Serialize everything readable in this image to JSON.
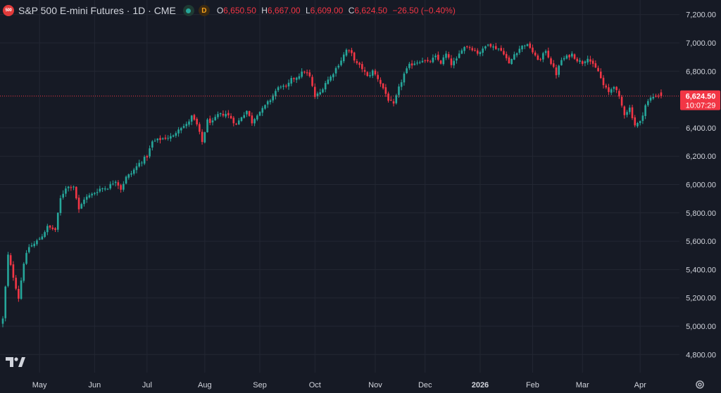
{
  "header": {
    "logo_text": "500",
    "symbol_title": "S&P 500 E-mini Futures · 1D · CME",
    "data_badge": "D",
    "open_key": "O",
    "open": "6,650.50",
    "high_key": "H",
    "high": "6,667.00",
    "low_key": "L",
    "low": "6,609.00",
    "close_key": "C",
    "close": "6,624.50",
    "change": "−26.50 (−0.40%)"
  },
  "price_label": {
    "price": "6,624.50",
    "countdown": "10:07:29"
  },
  "colors": {
    "up": "#26a69a",
    "down": "#f23645",
    "background": "#161a25",
    "grid": "#232733",
    "text": "#d1d4dc"
  },
  "icons": {
    "brand": "tradingview-logo-icon",
    "settings": "gear-icon"
  },
  "chart_data": {
    "type": "candlestick",
    "ylim": [
      4700,
      7300
    ],
    "grid": true,
    "last_price": 6624.5,
    "y_ticks": [
      {
        "value": 7200,
        "label": "7,200.00"
      },
      {
        "value": 7000,
        "label": "7,000.00"
      },
      {
        "value": 6800,
        "label": "6,800.00"
      },
      {
        "value": 6400,
        "label": "6,400.00"
      },
      {
        "value": 6200,
        "label": "6,200.00"
      },
      {
        "value": 6000,
        "label": "6,000.00"
      },
      {
        "value": 5800,
        "label": "5,800.00"
      },
      {
        "value": 5600,
        "label": "5,600.00"
      },
      {
        "value": 5400,
        "label": "5,400.00"
      },
      {
        "value": 5200,
        "label": "5,200.00"
      },
      {
        "value": 5000,
        "label": "5,000.00"
      },
      {
        "value": 4800,
        "label": "4,800.00"
      }
    ],
    "x_ticks": [
      {
        "label": "May",
        "day": 14,
        "bold": false
      },
      {
        "label": "Jun",
        "day": 35,
        "bold": false
      },
      {
        "label": "Jul",
        "day": 55,
        "bold": false
      },
      {
        "label": "Aug",
        "day": 77,
        "bold": false
      },
      {
        "label": "Sep",
        "day": 98,
        "bold": false
      },
      {
        "label": "Oct",
        "day": 119,
        "bold": false
      },
      {
        "label": "Nov",
        "day": 142,
        "bold": false
      },
      {
        "label": "Dec",
        "day": 161,
        "bold": false
      },
      {
        "label": "2026",
        "day": 182,
        "bold": true
      },
      {
        "label": "Feb",
        "day": 202,
        "bold": false
      },
      {
        "label": "Mar",
        "day": 221,
        "bold": false
      },
      {
        "label": "Apr",
        "day": 243,
        "bold": false
      }
    ],
    "close_path": [
      [
        0,
        5050
      ],
      [
        2,
        5500
      ],
      [
        4,
        5350
      ],
      [
        6,
        5200
      ],
      [
        8,
        5450
      ],
      [
        10,
        5560
      ],
      [
        12,
        5580
      ],
      [
        15,
        5640
      ],
      [
        17,
        5700
      ],
      [
        20,
        5680
      ],
      [
        22,
        5900
      ],
      [
        24,
        5980
      ],
      [
        27,
        5990
      ],
      [
        29,
        5820
      ],
      [
        31,
        5900
      ],
      [
        34,
        5930
      ],
      [
        37,
        5970
      ],
      [
        40,
        5980
      ],
      [
        43,
        6030
      ],
      [
        45,
        5970
      ],
      [
        47,
        6050
      ],
      [
        49,
        6080
      ],
      [
        52,
        6150
      ],
      [
        55,
        6200
      ],
      [
        57,
        6300
      ],
      [
        60,
        6320
      ],
      [
        62,
        6330
      ],
      [
        65,
        6340
      ],
      [
        67,
        6400
      ],
      [
        70,
        6420
      ],
      [
        72,
        6480
      ],
      [
        74,
        6420
      ],
      [
        76,
        6300
      ],
      [
        78,
        6450
      ],
      [
        80,
        6440
      ],
      [
        82,
        6490
      ],
      [
        85,
        6500
      ],
      [
        87,
        6470
      ],
      [
        89,
        6420
      ],
      [
        91,
        6480
      ],
      [
        93,
        6520
      ],
      [
        95,
        6440
      ],
      [
        97,
        6500
      ],
      [
        99,
        6530
      ],
      [
        102,
        6600
      ],
      [
        104,
        6660
      ],
      [
        106,
        6700
      ],
      [
        108,
        6680
      ],
      [
        110,
        6740
      ],
      [
        112,
        6760
      ],
      [
        115,
        6800
      ],
      [
        117,
        6760
      ],
      [
        119,
        6620
      ],
      [
        121,
        6650
      ],
      [
        123,
        6720
      ],
      [
        125,
        6760
      ],
      [
        127,
        6820
      ],
      [
        129,
        6880
      ],
      [
        131,
        6950
      ],
      [
        133,
        6920
      ],
      [
        135,
        6850
      ],
      [
        137,
        6820
      ],
      [
        139,
        6760
      ],
      [
        141,
        6800
      ],
      [
        143,
        6750
      ],
      [
        145,
        6680
      ],
      [
        147,
        6600
      ],
      [
        149,
        6560
      ],
      [
        151,
        6680
      ],
      [
        153,
        6780
      ],
      [
        155,
        6840
      ],
      [
        157,
        6860
      ],
      [
        160,
        6880
      ],
      [
        162,
        6860
      ],
      [
        165,
        6900
      ],
      [
        167,
        6860
      ],
      [
        169,
        6920
      ],
      [
        171,
        6850
      ],
      [
        173,
        6880
      ],
      [
        175,
        6960
      ],
      [
        177,
        6980
      ],
      [
        179,
        6960
      ],
      [
        181,
        6930
      ],
      [
        183,
        6950
      ],
      [
        185,
        7000
      ],
      [
        187,
        6970
      ],
      [
        189,
        6960
      ],
      [
        191,
        6930
      ],
      [
        193,
        6850
      ],
      [
        195,
        6920
      ],
      [
        197,
        6960
      ],
      [
        199,
        6990
      ],
      [
        201,
        6970
      ],
      [
        203,
        6900
      ],
      [
        205,
        6880
      ],
      [
        207,
        6950
      ],
      [
        209,
        6860
      ],
      [
        211,
        6780
      ],
      [
        213,
        6880
      ],
      [
        215,
        6900
      ],
      [
        217,
        6920
      ],
      [
        219,
        6880
      ],
      [
        221,
        6860
      ],
      [
        223,
        6900
      ],
      [
        225,
        6840
      ],
      [
        227,
        6800
      ],
      [
        229,
        6700
      ],
      [
        231,
        6650
      ],
      [
        233,
        6700
      ],
      [
        235,
        6610
      ],
      [
        237,
        6500
      ],
      [
        239,
        6540
      ],
      [
        241,
        6420
      ],
      [
        243,
        6440
      ],
      [
        245,
        6560
      ],
      [
        247,
        6610
      ],
      [
        249,
        6630
      ],
      [
        251,
        6624.5
      ]
    ]
  }
}
